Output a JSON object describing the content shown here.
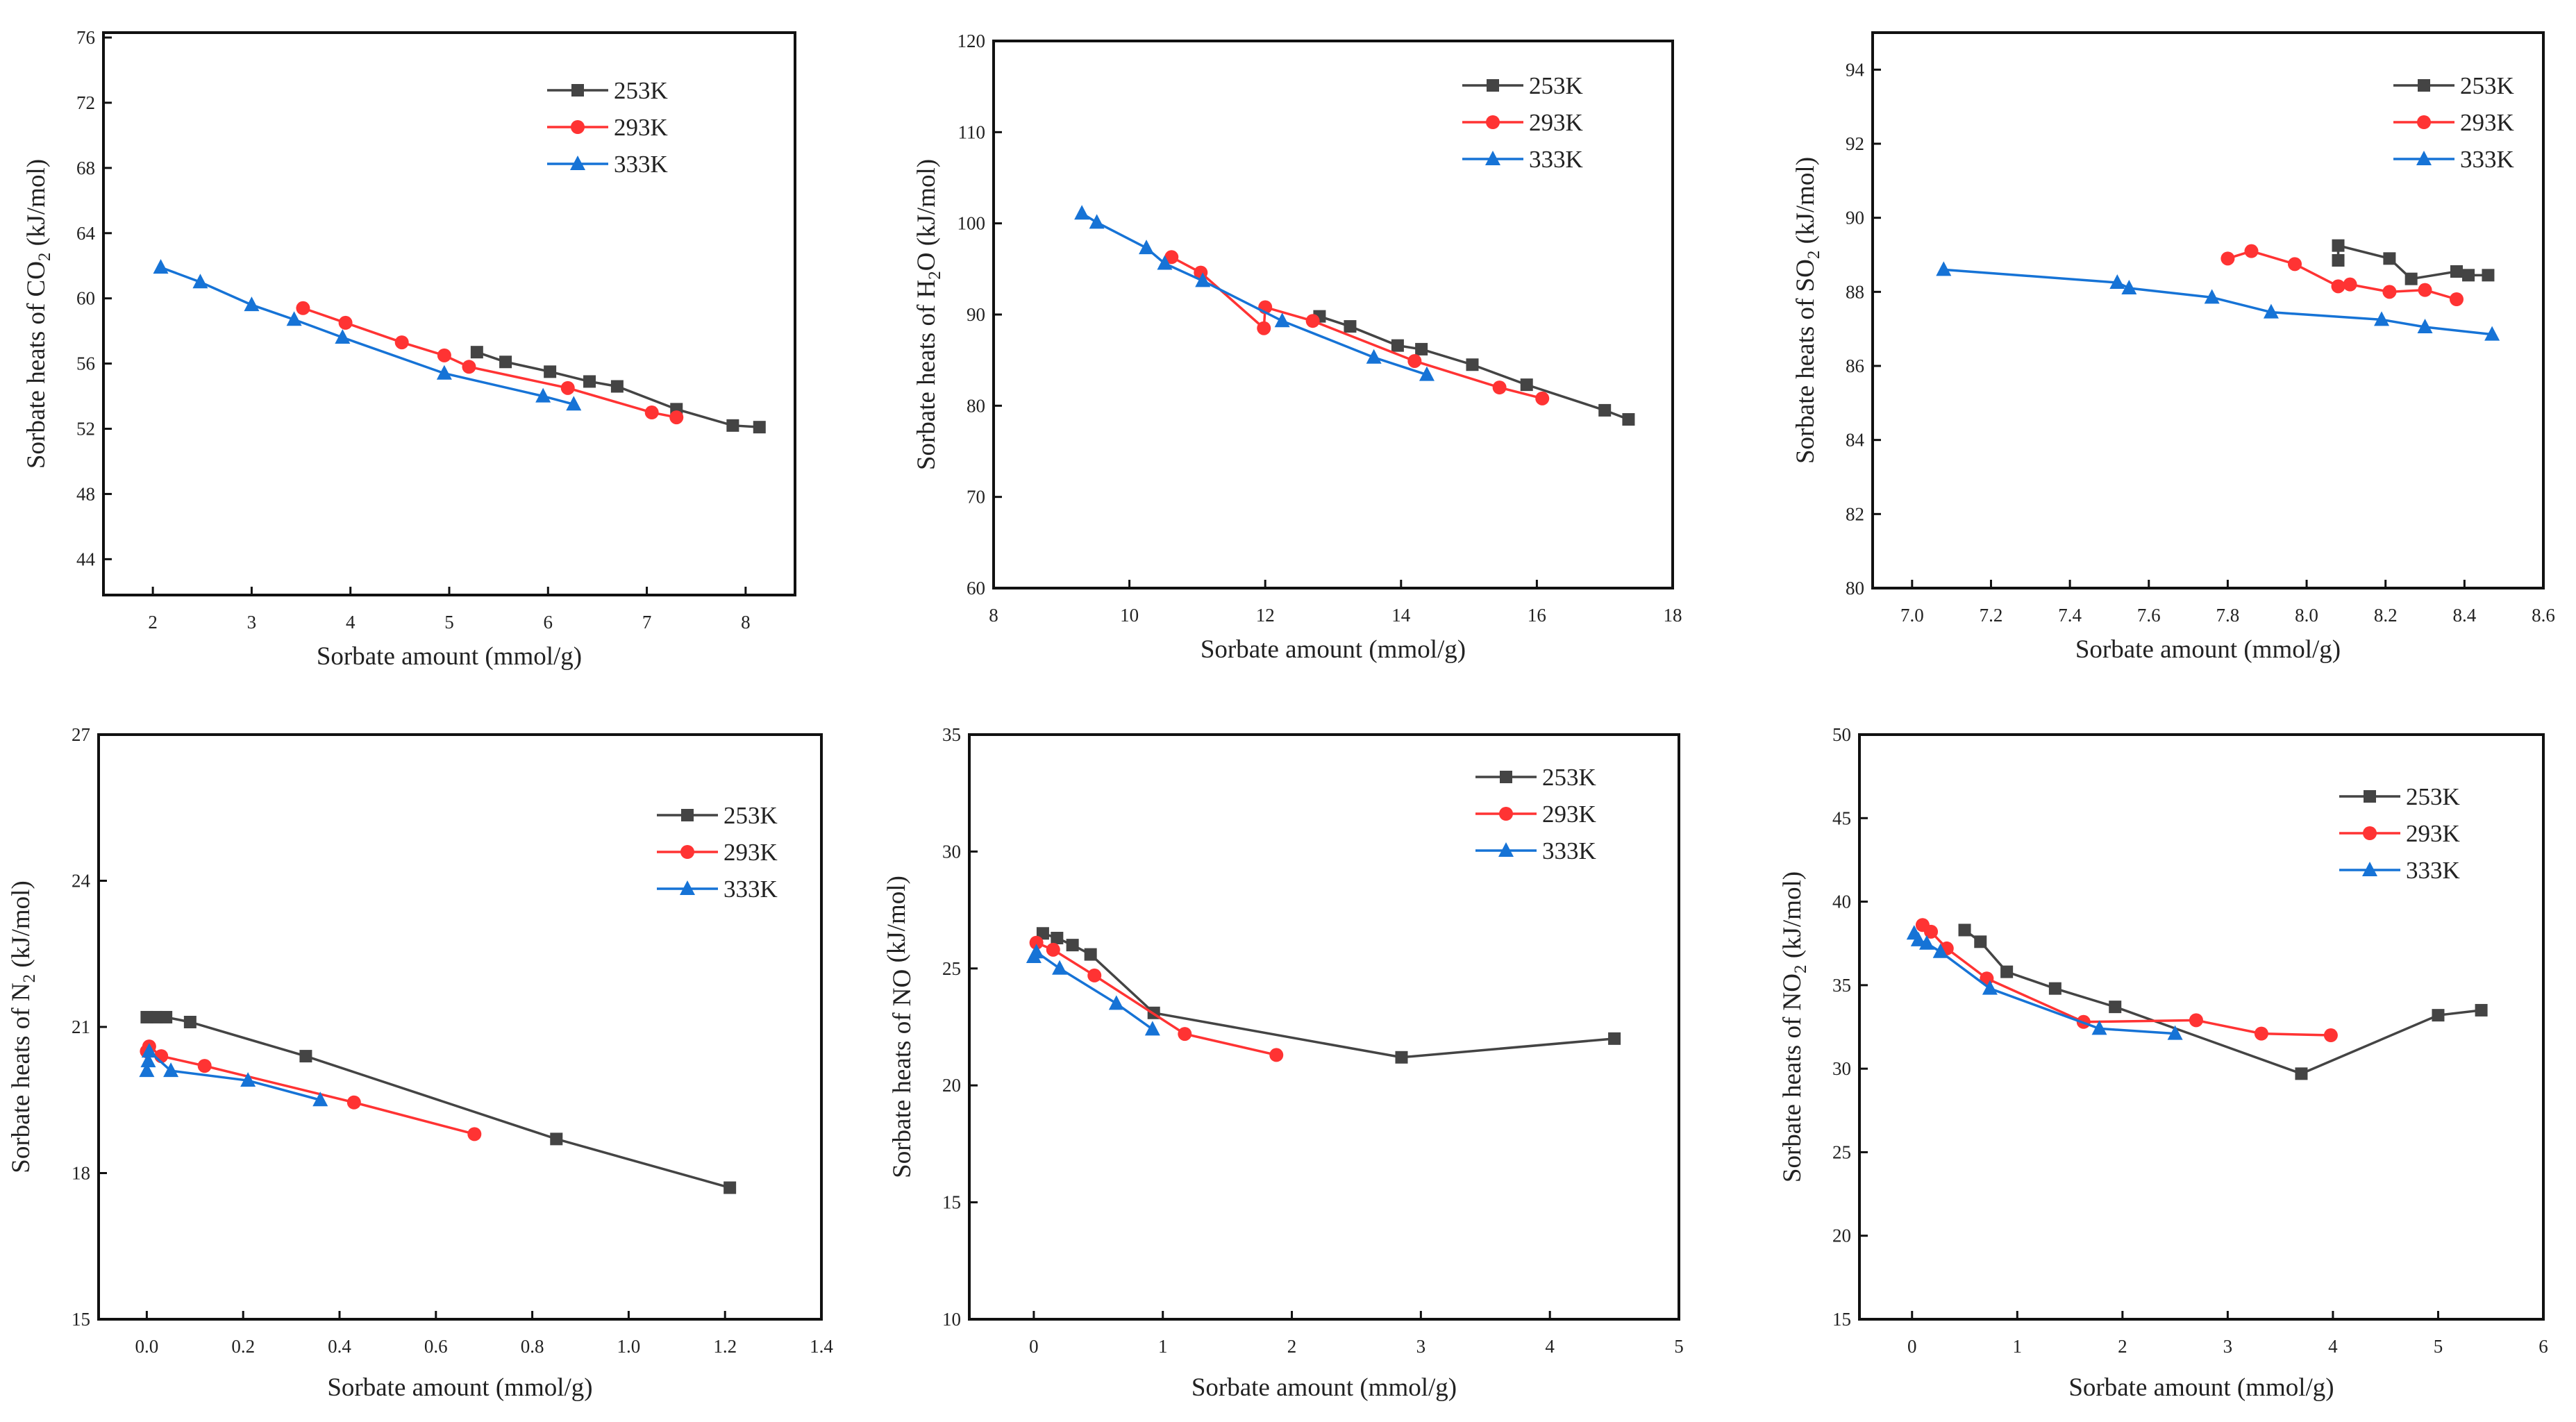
{
  "legend_labels": [
    "253K",
    "293K",
    "333K"
  ],
  "colors": {
    "253K": "#444444",
    "293K": "#ff3333",
    "333K": "#1673d6",
    "axis": "#111111"
  },
  "chart_data": [
    {
      "type": "line",
      "xlabel": "Sorbate amount (mmol/g)",
      "ylabel": {
        "prefix": "Sorbate heats of CO",
        "sub": "2",
        "suffix": " (kJ/mol)"
      },
      "xlim": [
        1.5,
        8.5
      ],
      "ylim": [
        41.8,
        76.3
      ],
      "xticks": [
        "2",
        "3",
        "4",
        "5",
        "6",
        "7",
        "8"
      ],
      "yticks": [
        "44",
        "48",
        "52",
        "56",
        "60",
        "64",
        "68",
        "72",
        "76"
      ],
      "grid": false,
      "legend": "top-right",
      "series": [
        {
          "name": "253K",
          "marker": "square",
          "x": [
            5.28,
            5.57,
            6.02,
            6.42,
            6.7,
            7.3,
            7.87,
            8.14
          ],
          "y": [
            56.7,
            56.1,
            55.5,
            54.9,
            54.6,
            53.2,
            52.2,
            52.1
          ]
        },
        {
          "name": "293K",
          "marker": "circle",
          "x": [
            3.52,
            3.95,
            4.52,
            4.95,
            5.2,
            6.2,
            7.05,
            7.3
          ],
          "y": [
            59.4,
            58.5,
            57.3,
            56.5,
            55.8,
            54.5,
            53.0,
            52.7
          ]
        },
        {
          "name": "333K",
          "marker": "triangle",
          "x": [
            2.08,
            2.48,
            3.0,
            3.43,
            3.92,
            4.95,
            5.95,
            6.26
          ],
          "y": [
            61.9,
            61.0,
            59.6,
            58.7,
            57.6,
            55.4,
            54.0,
            53.5
          ]
        }
      ]
    },
    {
      "type": "line",
      "xlabel": "Sorbate amount (mmol/g)",
      "ylabel": {
        "prefix": "Sorbate heats of H",
        "sub": "2",
        "suffix": "O (kJ/mol)"
      },
      "xlim": [
        8,
        18
      ],
      "ylim": [
        60,
        120
      ],
      "xticks": [
        "8",
        "10",
        "12",
        "14",
        "16",
        "18"
      ],
      "yticks": [
        "60",
        "70",
        "80",
        "90",
        "100",
        "110",
        "120"
      ],
      "grid": false,
      "legend": "top-right",
      "series": [
        {
          "name": "253K",
          "marker": "square",
          "x": [
            12.8,
            13.25,
            13.95,
            14.3,
            15.05,
            15.85,
            17.0,
            17.35
          ],
          "y": [
            89.8,
            88.7,
            86.6,
            86.2,
            84.5,
            82.3,
            79.5,
            78.5
          ]
        },
        {
          "name": "293K",
          "marker": "circle",
          "x": [
            10.62,
            11.05,
            11.98,
            12.0,
            12.7,
            14.2,
            15.45,
            16.08
          ],
          "y": [
            96.3,
            94.6,
            88.5,
            90.8,
            89.3,
            84.9,
            82.0,
            80.8
          ]
        },
        {
          "name": "333K",
          "marker": "triangle",
          "x": [
            9.3,
            9.52,
            10.25,
            10.52,
            11.08,
            12.25,
            13.6,
            14.38
          ],
          "y": [
            101.1,
            100.1,
            97.3,
            95.6,
            93.7,
            89.3,
            85.3,
            83.4
          ]
        }
      ]
    },
    {
      "type": "line",
      "xlabel": "Sorbate amount (mmol/g)",
      "ylabel": {
        "prefix": "Sorbate heats of SO",
        "sub": "2",
        "suffix": " (kJ/mol)"
      },
      "xlim": [
        6.9,
        8.6
      ],
      "ylim": [
        80,
        95
      ],
      "xticks": [
        "7.0",
        "7.2",
        "7.4",
        "7.6",
        "7.8",
        "8.0",
        "8.2",
        "8.4",
        "8.6"
      ],
      "yticks": [
        "80",
        "82",
        "84",
        "86",
        "88",
        "90",
        "92",
        "94"
      ],
      "grid": false,
      "legend": "top-right",
      "series": [
        {
          "name": "253K",
          "marker": "square",
          "x": [
            8.08,
            8.08,
            8.21,
            8.265,
            8.38,
            8.41,
            8.46
          ],
          "y": [
            88.85,
            89.25,
            88.9,
            88.35,
            88.55,
            88.45,
            88.45
          ]
        },
        {
          "name": "293K",
          "marker": "circle",
          "x": [
            7.8,
            7.86,
            7.97,
            8.08,
            8.11,
            8.21,
            8.3,
            8.38
          ],
          "y": [
            88.9,
            89.1,
            88.75,
            88.15,
            88.2,
            88.0,
            88.05,
            87.8
          ]
        },
        {
          "name": "333K",
          "marker": "triangle",
          "x": [
            7.08,
            7.52,
            7.55,
            7.76,
            7.91,
            8.19,
            8.3,
            8.47
          ],
          "y": [
            88.6,
            88.25,
            88.1,
            87.85,
            87.45,
            87.25,
            87.05,
            86.85
          ]
        }
      ]
    },
    {
      "type": "line",
      "xlabel": "Sorbate amount (mmol/g)",
      "ylabel": {
        "prefix": "Sorbate heats of N",
        "sub": "2",
        "suffix": " (kJ/mol)"
      },
      "xlim": [
        -0.1,
        1.4
      ],
      "ylim": [
        15,
        27
      ],
      "xticks": [
        "0.0",
        "0.2",
        "0.4",
        "0.6",
        "0.8",
        "1.0",
        "1.2",
        "1.4"
      ],
      "yticks": [
        "15",
        "18",
        "21",
        "24",
        "27"
      ],
      "grid": false,
      "legend": "top-right",
      "series": [
        {
          "name": "253K",
          "marker": "square",
          "x": [
            0.0,
            0.02,
            0.04,
            0.09,
            0.33,
            0.85,
            1.21
          ],
          "y": [
            21.2,
            21.2,
            21.2,
            21.1,
            20.4,
            18.7,
            17.7
          ]
        },
        {
          "name": "293K",
          "marker": "circle",
          "x": [
            0.0,
            0.005,
            0.03,
            0.12,
            0.43,
            0.68
          ],
          "y": [
            20.5,
            20.6,
            20.4,
            20.2,
            19.45,
            18.8
          ]
        },
        {
          "name": "333K",
          "marker": "triangle",
          "x": [
            0.0,
            0.003,
            0.005,
            0.05,
            0.21,
            0.36
          ],
          "y": [
            20.1,
            20.3,
            20.5,
            20.1,
            19.9,
            19.5
          ]
        }
      ]
    },
    {
      "type": "line",
      "xlabel": "Sorbate amount (mmol/g)",
      "ylabel": {
        "prefix": "Sorbate heats of NO",
        "sub": "",
        "suffix": " (kJ/mol)"
      },
      "xlim": [
        -0.5,
        5
      ],
      "ylim": [
        10,
        35
      ],
      "xticks": [
        "0",
        "1",
        "2",
        "3",
        "4",
        "5"
      ],
      "yticks": [
        "10",
        "15",
        "20",
        "25",
        "30",
        "35"
      ],
      "grid": false,
      "legend": "top-right",
      "series": [
        {
          "name": "253K",
          "marker": "square",
          "x": [
            0.07,
            0.18,
            0.3,
            0.44,
            0.93,
            2.85,
            4.5
          ],
          "y": [
            26.5,
            26.3,
            26.0,
            25.6,
            23.1,
            21.2,
            22.0
          ]
        },
        {
          "name": "293K",
          "marker": "circle",
          "x": [
            0.02,
            0.15,
            0.47,
            1.17,
            1.88
          ],
          "y": [
            26.1,
            25.8,
            24.7,
            22.2,
            21.3
          ]
        },
        {
          "name": "333K",
          "marker": "triangle",
          "x": [
            0.0,
            0.02,
            0.2,
            0.64,
            0.92
          ],
          "y": [
            25.5,
            25.7,
            25.0,
            23.5,
            22.4
          ]
        }
      ]
    },
    {
      "type": "line",
      "xlabel": "Sorbate amount (mmol/g)",
      "ylabel": {
        "prefix": "Sorbate heats of NO",
        "sub": "2",
        "suffix": " (kJ/mol)"
      },
      "xlim": [
        -0.5,
        6
      ],
      "ylim": [
        15,
        50
      ],
      "xticks": [
        "0",
        "1",
        "2",
        "3",
        "4",
        "5",
        "6"
      ],
      "yticks": [
        "15",
        "20",
        "25",
        "30",
        "35",
        "40",
        "45",
        "50"
      ],
      "grid": false,
      "legend": "top-right",
      "series": [
        {
          "name": "253K",
          "marker": "square",
          "x": [
            0.5,
            0.65,
            0.9,
            1.36,
            1.93,
            3.7,
            5.0,
            5.41
          ],
          "y": [
            38.3,
            37.6,
            35.8,
            34.8,
            33.7,
            29.7,
            33.2,
            33.5
          ]
        },
        {
          "name": "293K",
          "marker": "circle",
          "x": [
            0.1,
            0.18,
            0.33,
            0.71,
            1.63,
            2.7,
            3.32,
            3.98
          ],
          "y": [
            38.6,
            38.2,
            37.2,
            35.4,
            32.8,
            32.9,
            32.1,
            32.0
          ]
        },
        {
          "name": "333K",
          "marker": "triangle",
          "x": [
            0.02,
            0.06,
            0.14,
            0.27,
            0.74,
            1.78,
            2.5
          ],
          "y": [
            38.1,
            37.7,
            37.5,
            37.0,
            34.8,
            32.4,
            32.1
          ]
        }
      ]
    }
  ]
}
